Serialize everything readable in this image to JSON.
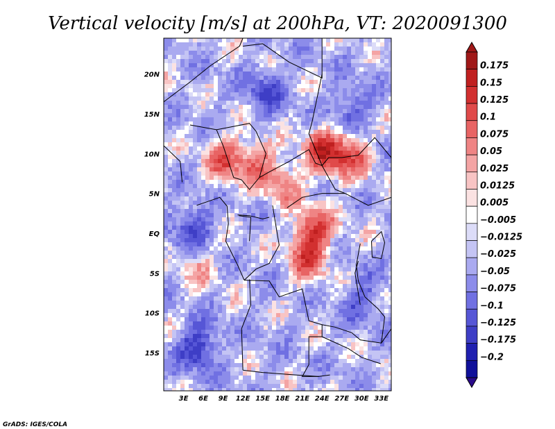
{
  "chart_data": {
    "type": "heatmap",
    "title": "Vertical velocity [m/s] at 200hPa, VT: 2020091300",
    "xlabel": "",
    "ylabel": "",
    "x_tick_labels": [
      "3E",
      "6E",
      "9E",
      "12E",
      "15E",
      "18E",
      "21E",
      "24E",
      "27E",
      "30E",
      "33E"
    ],
    "y_tick_labels": [
      "20N",
      "15N",
      "10N",
      "5N",
      "EQ",
      "5S",
      "10S",
      "15S"
    ],
    "xlim_deg": [
      0,
      34.5
    ],
    "ylim_deg": [
      -19.8,
      24.5
    ],
    "colorbar": {
      "levels": [
        "0.175",
        "0.15",
        "0.125",
        "0.1",
        "0.075",
        "0.05",
        "0.025",
        "0.0125",
        "0.005",
        "-0.005",
        "-0.0125",
        "-0.025",
        "-0.05",
        "-0.075",
        "-0.1",
        "-0.125",
        "-0.175",
        "-0.2"
      ],
      "colors": [
        "#a01818",
        "#c02020",
        "#d23030",
        "#e04a4a",
        "#e86464",
        "#ef8484",
        "#f4a4a4",
        "#f8c4c4",
        "#fbe2e2",
        "#ffffff",
        "#dcdcf8",
        "#c4c4f4",
        "#aaaaf0",
        "#8c8cea",
        "#7070e2",
        "#5656d6",
        "#3e3ec6",
        "#2020b0",
        "#10109a"
      ],
      "min_arrow_color": "#2a0a8a",
      "max_arrow_color": "#a01818"
    },
    "regions": [
      {
        "lon": 9,
        "lat": 9.5,
        "strength": 0.13
      },
      {
        "lon": 14,
        "lat": 9,
        "strength": 0.1
      },
      {
        "lon": 24,
        "lat": 10.5,
        "strength": 0.16
      },
      {
        "lon": 28,
        "lat": 10,
        "strength": 0.12
      },
      {
        "lon": 18,
        "lat": 6.5,
        "strength": 0.08
      },
      {
        "lon": 22.5,
        "lat": 0.5,
        "strength": 0.15
      },
      {
        "lon": 21.5,
        "lat": -3,
        "strength": 0.11
      },
      {
        "lon": 5,
        "lat": -4,
        "strength": 0.05
      },
      {
        "lon": 4,
        "lat": 1,
        "strength": -0.1
      },
      {
        "lon": 15,
        "lat": 18,
        "strength": -0.09
      },
      {
        "lon": 5,
        "lat": -14,
        "strength": -0.12
      },
      {
        "lon": 28,
        "lat": 16,
        "strength": -0.08
      },
      {
        "lon": 30,
        "lat": -8,
        "strength": -0.07
      }
    ]
  },
  "credit": "GrADS: IGES/COLA",
  "colors": {
    "land_outline": "#000000",
    "plot_frame": "#000000",
    "background": "#ffffff"
  }
}
